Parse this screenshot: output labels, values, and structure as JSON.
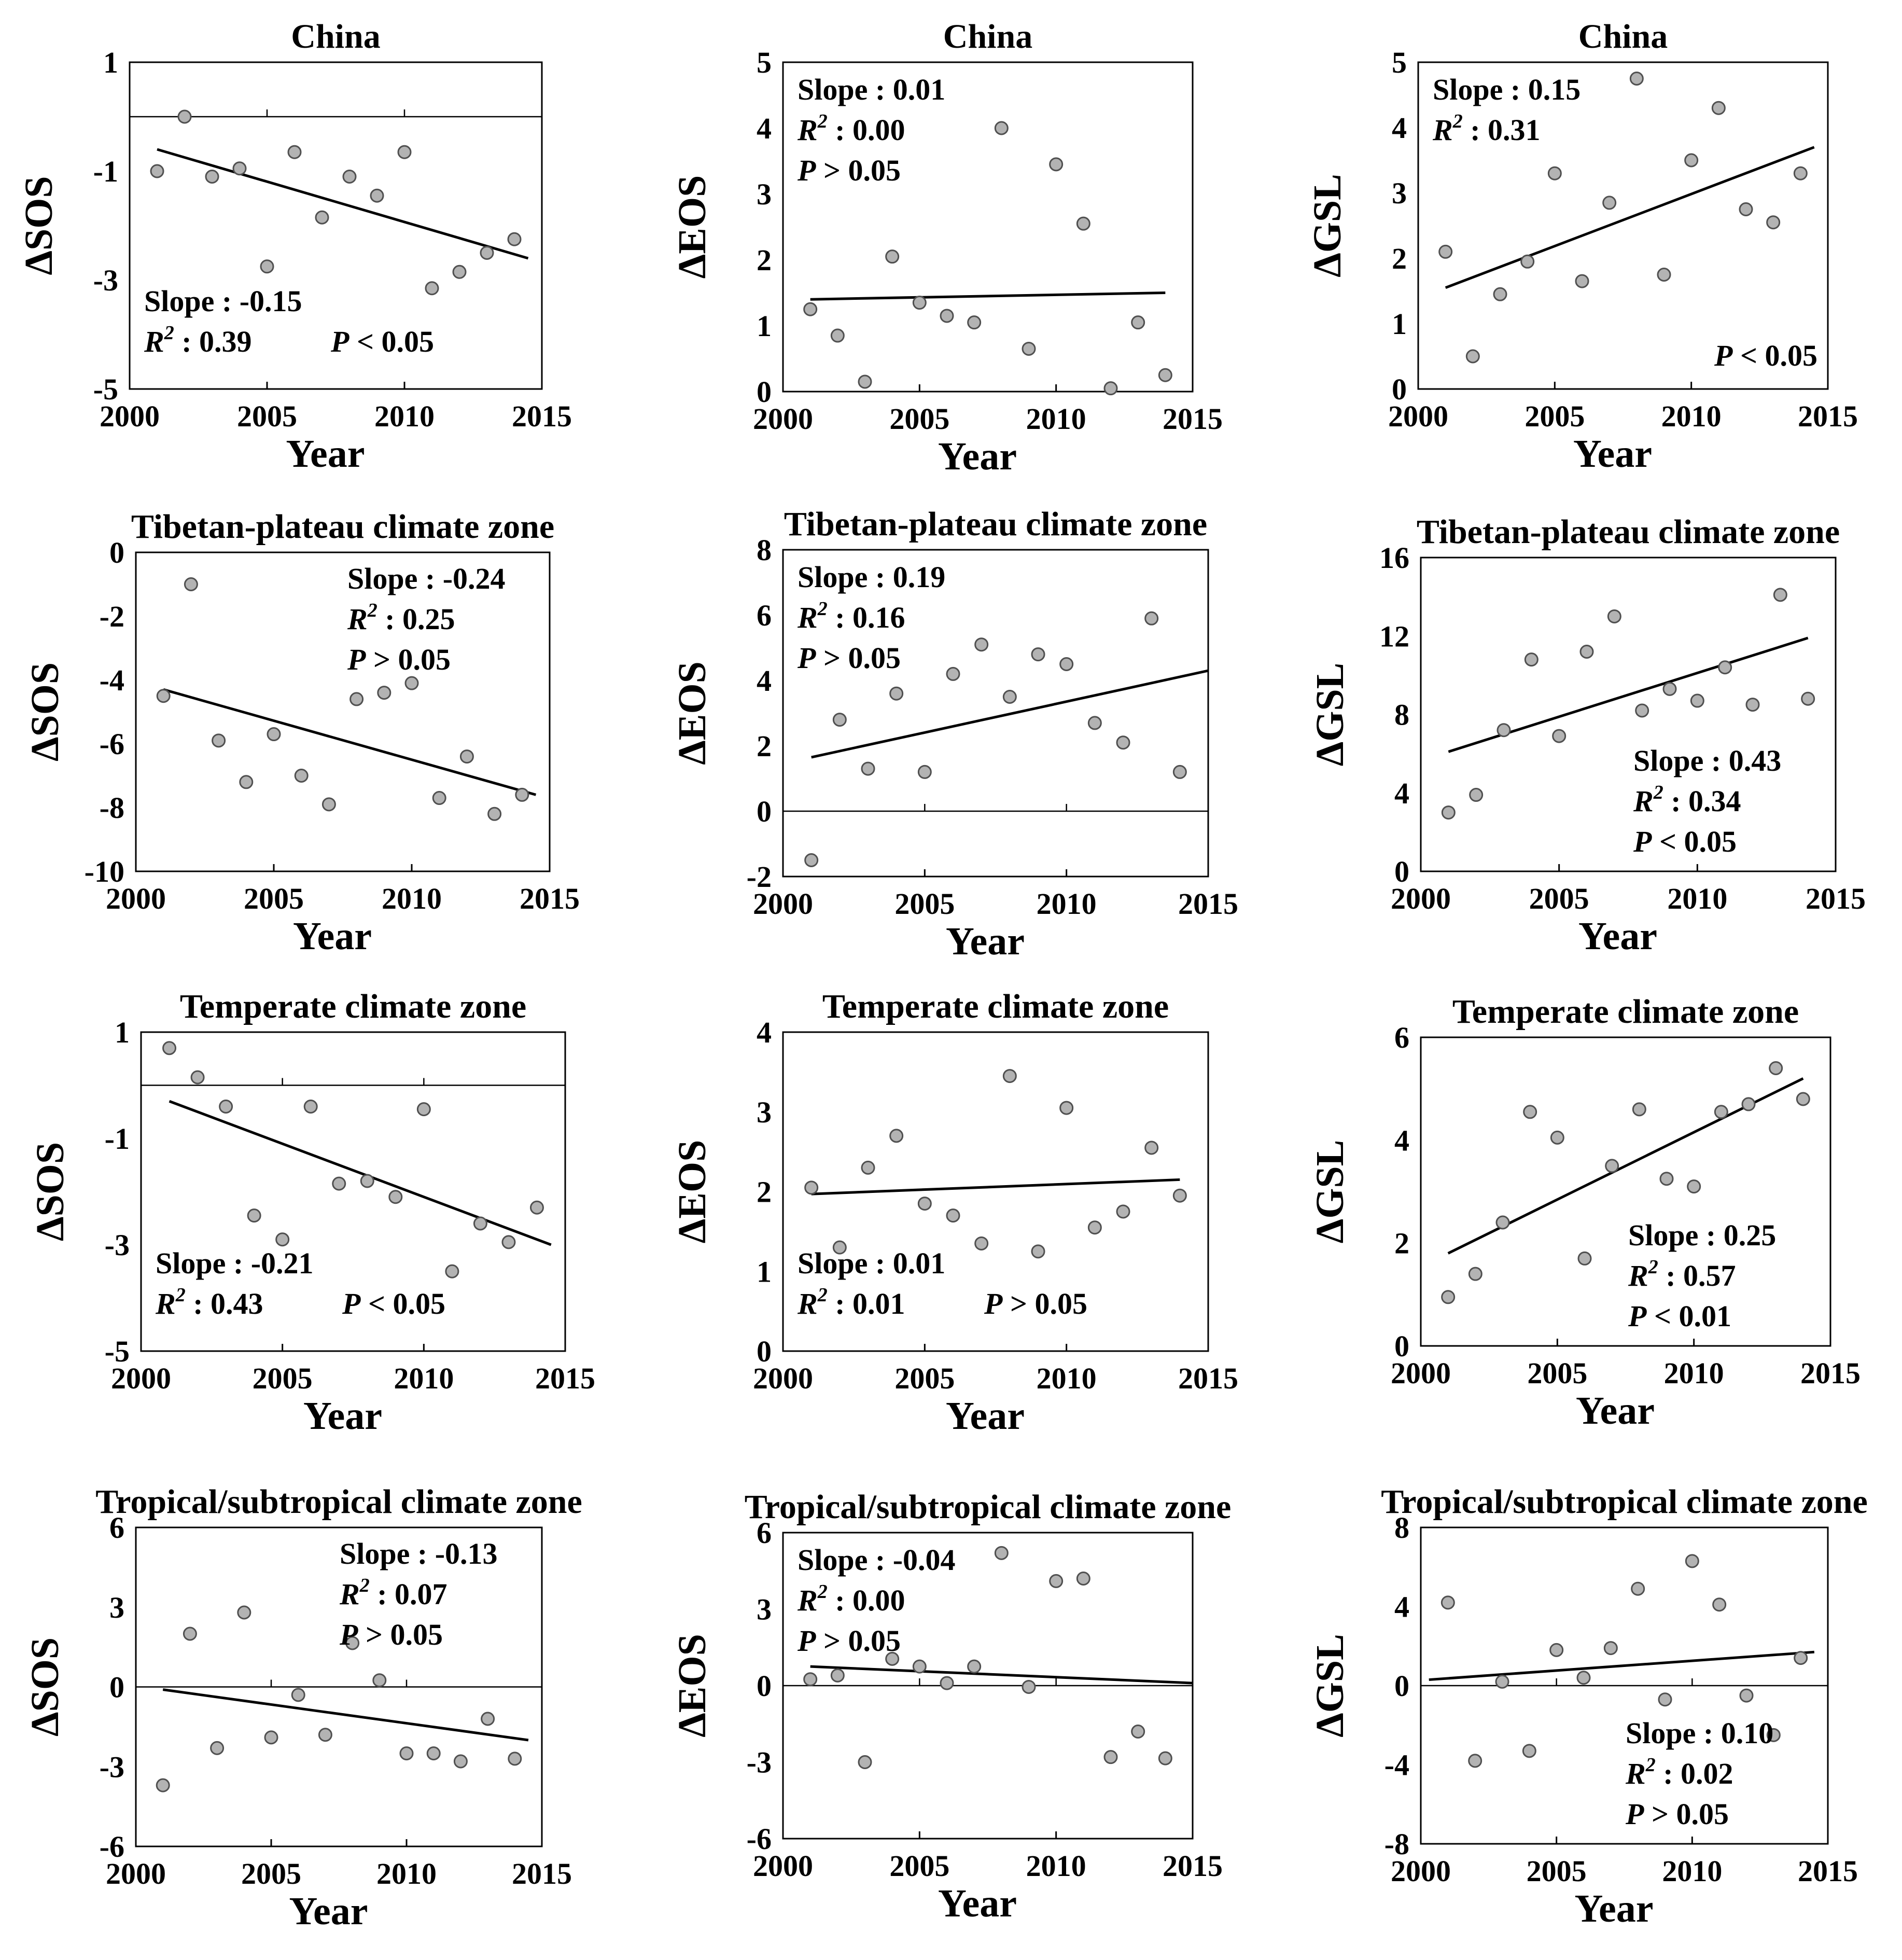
{
  "chart_data": [
    {
      "type": "scatter",
      "title": "China",
      "xlabel": "Year",
      "ylabel": "ΔSOS",
      "xlim": [
        2000,
        2015
      ],
      "ylim": [
        -5,
        1
      ],
      "xticks": [
        2000,
        2005,
        2010,
        2015
      ],
      "yticks": [
        1,
        -1,
        -3,
        -5
      ],
      "zero_line": true,
      "x": [
        2001,
        2002,
        2003,
        2004,
        2005,
        2006,
        2007,
        2008,
        2009,
        2010,
        2011,
        2012,
        2013,
        2014
      ],
      "y": [
        -1.0,
        0.0,
        -1.1,
        -0.95,
        -2.75,
        -0.65,
        -1.85,
        -1.1,
        -1.45,
        -0.65,
        -3.15,
        -2.85,
        -2.5,
        -2.25
      ],
      "fit": {
        "x": [
          2001,
          2014.5
        ],
        "y": [
          -0.6,
          -2.6
        ]
      },
      "stats": [
        {
          "label": "Slope : ",
          "value": "-0.15"
        },
        {
          "label": "R",
          "sup": "2",
          "sep": " : ",
          "value": "0.39"
        },
        {
          "label": "P",
          "sep": " < ",
          "value": "0.05"
        }
      ]
    },
    {
      "type": "scatter",
      "title": "China",
      "xlabel": "Year",
      "ylabel": "ΔEOS",
      "xlim": [
        2000,
        2015
      ],
      "ylim": [
        0,
        5
      ],
      "xticks": [
        2000,
        2005,
        2010,
        2015
      ],
      "yticks": [
        0,
        1,
        2,
        3,
        4,
        5
      ],
      "zero_line": false,
      "x": [
        2001,
        2002,
        2003,
        2004,
        2005,
        2006,
        2007,
        2008,
        2009,
        2010,
        2011,
        2012,
        2013,
        2014
      ],
      "y": [
        1.25,
        0.85,
        0.15,
        2.05,
        1.35,
        1.15,
        1.05,
        4.0,
        0.65,
        3.45,
        2.55,
        0.05,
        1.05,
        0.25
      ],
      "fit": {
        "x": [
          2001,
          2014
        ],
        "y": [
          1.4,
          1.5
        ]
      },
      "stats": [
        {
          "label": "Slope : ",
          "value": "0.01"
        },
        {
          "label": "R",
          "sup": "2",
          "sep": " : ",
          "value": "0.00"
        },
        {
          "label": "P",
          "sep": " > ",
          "value": "0.05"
        }
      ]
    },
    {
      "type": "scatter",
      "title": "China",
      "xlabel": "Year",
      "ylabel": "ΔGSL",
      "xlim": [
        2000,
        2015
      ],
      "ylim": [
        0,
        5
      ],
      "xticks": [
        2000,
        2005,
        2010,
        2015
      ],
      "yticks": [
        0,
        1,
        2,
        3,
        4,
        5
      ],
      "zero_line": false,
      "x": [
        2001,
        2002,
        2003,
        2004,
        2005,
        2006,
        2007,
        2008,
        2009,
        2010,
        2011,
        2012,
        2013,
        2014
      ],
      "y": [
        2.1,
        0.5,
        1.45,
        1.95,
        3.3,
        1.65,
        2.85,
        4.75,
        1.75,
        3.5,
        4.3,
        2.75,
        2.55,
        3.3
      ],
      "fit": {
        "x": [
          2001,
          2014.5
        ],
        "y": [
          1.55,
          3.7
        ]
      },
      "stats": [
        {
          "label": "Slope : ",
          "value": "0.15"
        },
        {
          "label": "R",
          "sup": "2",
          "sep": " : ",
          "value": "0.31"
        },
        {
          "label": "P",
          "sep": " < ",
          "value": "0.05"
        }
      ]
    },
    {
      "type": "scatter",
      "title": "Tibetan-plateau climate zone",
      "xlabel": "Year",
      "ylabel": "ΔSOS",
      "xlim": [
        2000,
        2015
      ],
      "ylim": [
        -10,
        0
      ],
      "xticks": [
        2000,
        2005,
        2010,
        2015
      ],
      "yticks": [
        0,
        -2,
        -4,
        -6,
        -8,
        -10
      ],
      "zero_line": false,
      "x": [
        2001,
        2002,
        2003,
        2004,
        2005,
        2006,
        2007,
        2008,
        2009,
        2010,
        2011,
        2012,
        2013,
        2014
      ],
      "y": [
        -4.5,
        -1.0,
        -5.9,
        -7.2,
        -5.7,
        -7.0,
        -7.9,
        -4.6,
        -4.4,
        -4.1,
        -7.7,
        -6.4,
        -8.2,
        -7.6
      ],
      "fit": {
        "x": [
          2001,
          2014.5
        ],
        "y": [
          -4.3,
          -7.6
        ]
      },
      "stats": [
        {
          "label": "Slope : ",
          "value": "-0.24"
        },
        {
          "label": "R",
          "sup": "2",
          "sep": " : ",
          "value": "0.25"
        },
        {
          "label": "P",
          "sep": " > ",
          "value": "0.05"
        }
      ]
    },
    {
      "type": "scatter",
      "title": "Tibetan-plateau climate zone",
      "xlabel": "Year",
      "ylabel": "ΔEOS",
      "xlim": [
        2000,
        2015
      ],
      "ylim": [
        -2,
        8
      ],
      "xticks": [
        2000,
        2005,
        2010,
        2015
      ],
      "yticks": [
        8,
        6,
        4,
        2,
        0,
        -2
      ],
      "zero_line": true,
      "x": [
        2001,
        2002,
        2003,
        2004,
        2005,
        2006,
        2007,
        2008,
        2009,
        2010,
        2011,
        2012,
        2013,
        2014
      ],
      "y": [
        -1.5,
        2.8,
        1.3,
        3.6,
        1.2,
        4.2,
        5.1,
        3.5,
        4.8,
        4.5,
        2.7,
        2.1,
        5.9,
        1.2
      ],
      "fit": {
        "x": [
          2001,
          2015
        ],
        "y": [
          1.65,
          4.3
        ]
      },
      "stats": [
        {
          "label": "Slope : ",
          "value": "0.19"
        },
        {
          "label": "R",
          "sup": "2",
          "sep": " : ",
          "value": "0.16"
        },
        {
          "label": "P",
          "sep": " > ",
          "value": "0.05"
        }
      ]
    },
    {
      "type": "scatter",
      "title": "Tibetan-plateau climate zone",
      "xlabel": "Year",
      "ylabel": "ΔGSL",
      "xlim": [
        2000,
        2015
      ],
      "ylim": [
        0,
        16
      ],
      "xticks": [
        2000,
        2005,
        2010,
        2015
      ],
      "yticks": [
        0,
        4,
        8,
        12,
        16
      ],
      "zero_line": false,
      "x": [
        2001,
        2002,
        2003,
        2004,
        2005,
        2006,
        2007,
        2008,
        2009,
        2010,
        2011,
        2012,
        2013,
        2014
      ],
      "y": [
        3.0,
        3.9,
        7.2,
        10.8,
        6.9,
        11.2,
        13.0,
        8.2,
        9.3,
        8.7,
        10.4,
        8.5,
        14.1,
        8.8
      ],
      "fit": {
        "x": [
          2001,
          2014
        ],
        "y": [
          6.1,
          11.9
        ]
      },
      "stats": [
        {
          "label": "Slope : ",
          "value": "0.43"
        },
        {
          "label": "R",
          "sup": "2",
          "sep": " : ",
          "value": "0.34"
        },
        {
          "label": "P",
          "sep": " < ",
          "value": "0.05"
        }
      ]
    },
    {
      "type": "scatter",
      "title": "Temperate climate zone",
      "xlabel": "Year",
      "ylabel": "ΔSOS",
      "xlim": [
        2000,
        2015
      ],
      "ylim": [
        -5,
        1
      ],
      "xticks": [
        2000,
        2005,
        2010,
        2015
      ],
      "yticks": [
        1,
        -1,
        -3,
        -5
      ],
      "zero_line": true,
      "x": [
        2001,
        2002,
        2003,
        2004,
        2005,
        2006,
        2007,
        2008,
        2009,
        2010,
        2011,
        2012,
        2013,
        2014
      ],
      "y": [
        0.7,
        0.15,
        -0.4,
        -2.45,
        -2.9,
        -0.4,
        -1.85,
        -1.8,
        -2.1,
        -0.45,
        -3.5,
        -2.6,
        -2.95,
        -2.3
      ],
      "fit": {
        "x": [
          2001,
          2014.5
        ],
        "y": [
          -0.3,
          -3.0
        ]
      },
      "stats": [
        {
          "label": "Slope : ",
          "value": "-0.21"
        },
        {
          "label": "R",
          "sup": "2",
          "sep": " : ",
          "value": "0.43"
        },
        {
          "label": "P",
          "sep": " < ",
          "value": "0.05"
        }
      ]
    },
    {
      "type": "scatter",
      "title": "Temperate climate zone",
      "xlabel": "Year",
      "ylabel": "ΔEOS",
      "xlim": [
        2000,
        2015
      ],
      "ylim": [
        0,
        4
      ],
      "xticks": [
        2000,
        2005,
        2010,
        2015
      ],
      "yticks": [
        0,
        1,
        2,
        3,
        4
      ],
      "zero_line": false,
      "x": [
        2001,
        2002,
        2003,
        2004,
        2005,
        2006,
        2007,
        2008,
        2009,
        2010,
        2011,
        2012,
        2013,
        2014
      ],
      "y": [
        2.05,
        1.3,
        2.3,
        2.7,
        1.85,
        1.7,
        1.35,
        3.45,
        1.25,
        3.05,
        1.55,
        1.75,
        2.55,
        1.95
      ],
      "fit": {
        "x": [
          2001,
          2014
        ],
        "y": [
          1.97,
          2.15
        ]
      },
      "stats": [
        {
          "label": "Slope : ",
          "value": "0.01"
        },
        {
          "label": "R",
          "sup": "2",
          "sep": " : ",
          "value": "0.01"
        },
        {
          "label": "P",
          "sep": " > ",
          "value": "0.05"
        }
      ]
    },
    {
      "type": "scatter",
      "title": "Temperate climate zone",
      "xlabel": "Year",
      "ylabel": "ΔGSL",
      "xlim": [
        2000,
        2015
      ],
      "ylim": [
        0,
        6
      ],
      "xticks": [
        2000,
        2005,
        2010,
        2015
      ],
      "yticks": [
        0,
        2,
        4,
        6
      ],
      "zero_line": false,
      "x": [
        2001,
        2002,
        2003,
        2004,
        2005,
        2006,
        2007,
        2008,
        2009,
        2010,
        2011,
        2012,
        2013,
        2014
      ],
      "y": [
        0.95,
        1.4,
        2.4,
        4.55,
        4.05,
        1.7,
        3.5,
        4.6,
        3.25,
        3.1,
        4.55,
        4.7,
        5.4,
        4.8
      ],
      "fit": {
        "x": [
          2001,
          2014
        ],
        "y": [
          1.8,
          5.2
        ]
      },
      "stats": [
        {
          "label": "Slope : ",
          "value": "0.25"
        },
        {
          "label": "R",
          "sup": "2",
          "sep": " : ",
          "value": "0.57"
        },
        {
          "label": "P",
          "sep": " < ",
          "value": "0.01"
        }
      ]
    },
    {
      "type": "scatter",
      "title": "Tropical/subtropical climate zone",
      "xlabel": "Year",
      "ylabel": "ΔSOS",
      "xlim": [
        2000,
        2015
      ],
      "ylim": [
        -6,
        6
      ],
      "xticks": [
        2000,
        2005,
        2010,
        2015
      ],
      "yticks": [
        6,
        3,
        0,
        -3,
        -6
      ],
      "zero_line": true,
      "x": [
        2001,
        2002,
        2003,
        2004,
        2005,
        2006,
        2007,
        2008,
        2009,
        2010,
        2011,
        2012,
        2013,
        2014
      ],
      "y": [
        -3.7,
        2.0,
        -2.3,
        2.8,
        -1.9,
        -0.3,
        -1.8,
        1.65,
        0.25,
        -2.5,
        -2.5,
        -2.8,
        -1.2,
        -2.7
      ],
      "fit": {
        "x": [
          2001,
          2014.5
        ],
        "y": [
          -0.1,
          -2.0
        ]
      },
      "stats": [
        {
          "label": "Slope : ",
          "value": "-0.13"
        },
        {
          "label": "R",
          "sup": "2",
          "sep": " : ",
          "value": "0.07"
        },
        {
          "label": "P",
          "sep": " > ",
          "value": "0.05"
        }
      ]
    },
    {
      "type": "scatter",
      "title": "Tropical/subtropical climate zone",
      "xlabel": "Year",
      "ylabel": "ΔEOS",
      "xlim": [
        2000,
        2015
      ],
      "ylim": [
        -6,
        6
      ],
      "xticks": [
        2000,
        2005,
        2010,
        2015
      ],
      "yticks": [
        6,
        3,
        0,
        -3,
        -6
      ],
      "zero_line": true,
      "x": [
        2001,
        2002,
        2003,
        2004,
        2005,
        2006,
        2007,
        2008,
        2009,
        2010,
        2011,
        2012,
        2013,
        2014
      ],
      "y": [
        0.25,
        0.4,
        -3.0,
        1.05,
        0.75,
        0.1,
        0.75,
        5.2,
        -0.05,
        4.1,
        4.2,
        -2.8,
        -1.8,
        -2.85
      ],
      "fit": {
        "x": [
          2001,
          2015
        ],
        "y": [
          0.75,
          0.1
        ]
      },
      "stats": [
        {
          "label": "Slope : ",
          "value": "-0.04"
        },
        {
          "label": "R",
          "sup": "2",
          "sep": " : ",
          "value": "0.00"
        },
        {
          "label": "P",
          "sep": " > ",
          "value": "0.05"
        }
      ]
    },
    {
      "type": "scatter",
      "title": "Tropical/subtropical climate zone",
      "xlabel": "Year",
      "ylabel": "ΔGSL",
      "xlim": [
        2000,
        2015
      ],
      "ylim": [
        -8,
        8
      ],
      "xticks": [
        2000,
        2005,
        2010,
        2015
      ],
      "yticks": [
        8,
        4,
        0,
        -4,
        -8
      ],
      "zero_line": true,
      "x": [
        2001,
        2002,
        2003,
        2004,
        2005,
        2006,
        2007,
        2008,
        2009,
        2010,
        2011,
        2012,
        2013,
        2014
      ],
      "y": [
        4.2,
        -3.8,
        0.2,
        -3.3,
        1.8,
        0.4,
        1.9,
        4.9,
        -0.7,
        6.3,
        4.1,
        -0.5,
        -2.5,
        1.4
      ],
      "fit": {
        "x": [
          2000.3,
          2014.5
        ],
        "y": [
          0.3,
          1.7
        ]
      },
      "stats": [
        {
          "label": "Slope : ",
          "value": "0.10"
        },
        {
          "label": "R",
          "sup": "2",
          "sep": " : ",
          "value": "0.02"
        },
        {
          "label": "P",
          "sep": " > ",
          "value": "0.05"
        }
      ]
    }
  ],
  "colors": {
    "marker_fill": "#b3b3b3",
    "marker_stroke": "#505050",
    "line": "#000000"
  }
}
